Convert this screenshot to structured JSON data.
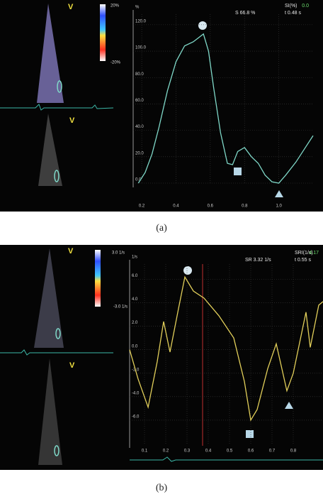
{
  "chart_data": [
    {
      "type": "line",
      "ylabel": "%",
      "color": "#7fd8c8",
      "header": {
        "measure": "SI(%)",
        "measure_value": "0.0",
        "peak": "S 66.8 %",
        "time": "t 0.48 s"
      },
      "overlay": {
        "view": "V",
        "view2": "V",
        "scale_top": "20%",
        "scale_bottom": "-20%"
      },
      "x": [
        0.18,
        0.22,
        0.26,
        0.3,
        0.35,
        0.4,
        0.45,
        0.5,
        0.53,
        0.56,
        0.59,
        0.62,
        0.66,
        0.7,
        0.73,
        0.76,
        0.8,
        0.84,
        0.88,
        0.92,
        0.96,
        1.0,
        1.04,
        1.1,
        1.15,
        1.2
      ],
      "values": [
        0,
        8,
        22,
        42,
        70,
        92,
        104,
        107,
        110,
        113,
        100,
        72,
        38,
        15,
        14,
        24,
        27,
        20,
        15,
        6,
        1,
        0,
        6,
        16,
        26,
        36
      ],
      "xlim": [
        0.15,
        1.2
      ],
      "ylim": [
        0,
        128
      ],
      "xticks": [
        0.2,
        0.4,
        0.6,
        0.8,
        {
          "value": 1,
          "label": "1.0"
        }
      ],
      "yticks": [
        {
          "value": 0,
          "label": "0.0"
        },
        {
          "value": 20,
          "label": "20.0"
        },
        {
          "value": 40,
          "label": "40.0"
        },
        {
          "value": 60,
          "label": "60.0"
        },
        {
          "value": 80,
          "label": "80.0"
        },
        {
          "value": 100,
          "label": "100.0"
        },
        {
          "value": 120,
          "label": "120.0"
        }
      ],
      "grid": true
    },
    {
      "type": "line",
      "ylabel": "1/s",
      "color": "#e2cf5a",
      "header": {
        "measure": "SRI(1/s)",
        "measure_value": "4.17",
        "peak": "SR 3.32 1/s",
        "time": "t 0.55 s"
      },
      "overlay": {
        "view": "V",
        "view2": "V",
        "scale_top": "3.0 1/s",
        "scale_bottom": "-3.0 1/s"
      },
      "x": [
        0.03,
        0.07,
        0.117,
        0.16,
        0.19,
        0.22,
        0.26,
        0.29,
        0.33,
        0.38,
        0.45,
        0.52,
        0.57,
        0.6,
        0.63,
        0.68,
        0.72,
        0.77,
        0.8,
        0.86,
        0.88,
        0.92,
        0.94
      ],
      "values": [
        0,
        -2.5,
        -4.9,
        -1,
        2.4,
        -0.2,
        3.5,
        6.2,
        5,
        4.4,
        2.9,
        1,
        -2.7,
        -6,
        -5.1,
        -1.6,
        0.5,
        -3.5,
        -2,
        3.2,
        0.2,
        3.8,
        4.1
      ],
      "xlim": [
        0.03,
        0.94
      ],
      "ylim": [
        -8,
        7.3
      ],
      "xticks": [
        0.1,
        0.2,
        0.3,
        0.4,
        0.5,
        0.6,
        0.7,
        0.8
      ],
      "yticks": [
        {
          "value": -6,
          "label": "-6.0"
        },
        {
          "value": -4,
          "label": "-4.0"
        },
        {
          "value": -2,
          "label": "-2.0"
        },
        {
          "value": 0,
          "label": "0.0"
        },
        {
          "value": 2,
          "label": "2.0"
        },
        {
          "value": 4,
          "label": "4.0"
        },
        {
          "value": 6,
          "label": "6.0"
        }
      ],
      "grid": true
    }
  ],
  "captions": [
    "(a)",
    "(b)"
  ]
}
